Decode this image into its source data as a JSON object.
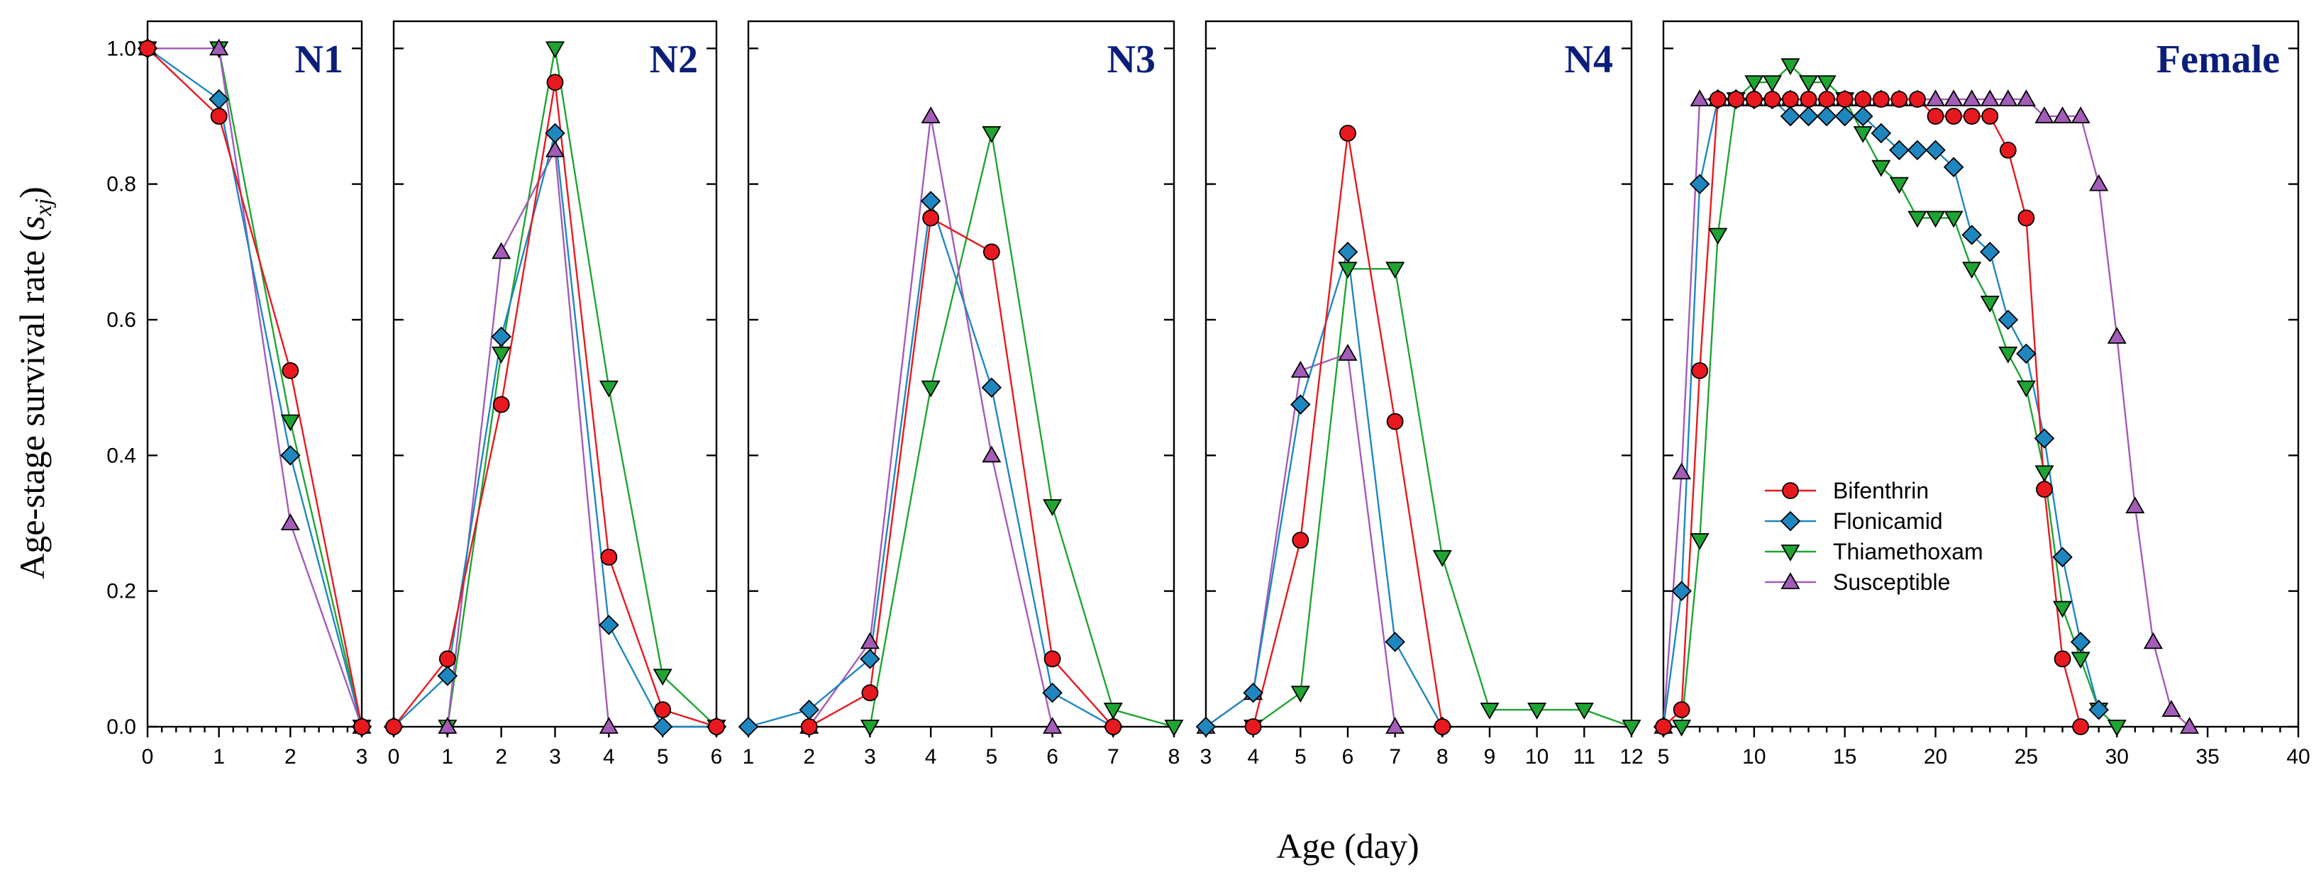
{
  "chart_data": {
    "type": "line",
    "ylabel_main": "Age-stage survival rate (",
    "ylabel_var": "s",
    "ylabel_sub": "xj",
    "ylabel_close": ")",
    "xlabel": "Age (day)",
    "ylim": [
      0,
      1.04
    ],
    "yticks": [
      0.0,
      0.2,
      0.4,
      0.6,
      0.8,
      1.0
    ],
    "legend_position": "middle-right of Female panel",
    "series_styles": [
      {
        "name": "Bifenthrin",
        "color": "#e8191e",
        "marker": "circle"
      },
      {
        "name": "Flonicamid",
        "color": "#1f87c0",
        "marker": "diamond"
      },
      {
        "name": "Thiamethoxam",
        "color": "#1fa532",
        "marker": "triangle-down"
      },
      {
        "name": "Susceptible",
        "color": "#a35cb8",
        "marker": "triangle-up"
      }
    ],
    "panels": [
      {
        "title": "N1",
        "xlim": [
          0,
          3
        ],
        "xticks": [
          0,
          1,
          2,
          3
        ],
        "minor_per_major": 4,
        "series": [
          {
            "name": "Bifenthrin",
            "x": [
              0,
              1,
              2,
              3
            ],
            "y": [
              1.0,
              0.9,
              0.525,
              0.0
            ]
          },
          {
            "name": "Flonicamid",
            "x": [
              0,
              1,
              2,
              3
            ],
            "y": [
              1.0,
              0.925,
              0.4,
              0.0
            ]
          },
          {
            "name": "Thiamethoxam",
            "x": [
              0,
              1,
              2,
              3
            ],
            "y": [
              1.0,
              1.0,
              0.45,
              0.0
            ]
          },
          {
            "name": "Susceptible",
            "x": [
              0,
              1,
              2,
              3
            ],
            "y": [
              1.0,
              1.0,
              0.3,
              0.0
            ]
          }
        ]
      },
      {
        "title": "N2",
        "xlim": [
          0,
          6
        ],
        "xticks": [
          0,
          1,
          2,
          3,
          4,
          5,
          6
        ],
        "minor_per_major": 0,
        "series": [
          {
            "name": "Bifenthrin",
            "x": [
              0,
              1,
              2,
              3,
              4,
              5,
              6
            ],
            "y": [
              0.0,
              0.1,
              0.475,
              0.95,
              0.25,
              0.025,
              0.0
            ]
          },
          {
            "name": "Flonicamid",
            "x": [
              0,
              1,
              2,
              3,
              4,
              5,
              6
            ],
            "y": [
              0.0,
              0.075,
              0.575,
              0.875,
              0.15,
              0.0,
              0.0
            ]
          },
          {
            "name": "Thiamethoxam",
            "x": [
              1,
              2,
              3,
              4,
              5,
              6
            ],
            "y": [
              0.0,
              0.55,
              1.0,
              0.5,
              0.075,
              0.0
            ]
          },
          {
            "name": "Susceptible",
            "x": [
              1,
              2,
              3,
              4
            ],
            "y": [
              0.0,
              0.7,
              0.85,
              0.0
            ]
          }
        ]
      },
      {
        "title": "N3",
        "xlim": [
          1,
          8
        ],
        "xticks": [
          1,
          2,
          3,
          4,
          5,
          6,
          7,
          8
        ],
        "minor_per_major": 0,
        "series": [
          {
            "name": "Bifenthrin",
            "x": [
              2,
              3,
              4,
              5,
              6,
              7
            ],
            "y": [
              0.0,
              0.05,
              0.75,
              0.7,
              0.1,
              0.0
            ]
          },
          {
            "name": "Flonicamid",
            "x": [
              1,
              2,
              3,
              4,
              5,
              6,
              7
            ],
            "y": [
              0.0,
              0.025,
              0.1,
              0.775,
              0.5,
              0.05,
              0.0
            ]
          },
          {
            "name": "Thiamethoxam",
            "x": [
              3,
              4,
              5,
              6,
              7,
              8
            ],
            "y": [
              0.0,
              0.5,
              0.875,
              0.325,
              0.025,
              0.0
            ]
          },
          {
            "name": "Susceptible",
            "x": [
              2,
              3,
              4,
              5,
              6
            ],
            "y": [
              0.0,
              0.125,
              0.9,
              0.4,
              0.0
            ]
          }
        ]
      },
      {
        "title": "N4",
        "xlim": [
          3,
          12
        ],
        "xticks": [
          3,
          4,
          5,
          6,
          7,
          8,
          9,
          10,
          11,
          12
        ],
        "minor_per_major": 0,
        "series": [
          {
            "name": "Bifenthrin",
            "x": [
              4,
              5,
              6,
              7,
              8
            ],
            "y": [
              0.0,
              0.275,
              0.875,
              0.45,
              0.0
            ]
          },
          {
            "name": "Flonicamid",
            "x": [
              3,
              4,
              5,
              6,
              7,
              8
            ],
            "y": [
              0.0,
              0.05,
              0.475,
              0.7,
              0.125,
              0.0
            ]
          },
          {
            "name": "Thiamethoxam",
            "x": [
              4,
              5,
              6,
              7,
              8,
              9,
              10,
              11,
              12
            ],
            "y": [
              0.0,
              0.05,
              0.675,
              0.675,
              0.25,
              0.025,
              0.025,
              0.025,
              0.0
            ]
          },
          {
            "name": "Susceptible",
            "x": [
              3,
              4,
              5,
              6,
              7
            ],
            "y": [
              0.0,
              0.05,
              0.525,
              0.55,
              0.0
            ]
          }
        ]
      },
      {
        "title": "Female",
        "xlim": [
          5,
          40
        ],
        "xticks": [
          5,
          10,
          15,
          20,
          25,
          30,
          35,
          40
        ],
        "minor_per_major": 4,
        "series": [
          {
            "name": "Bifenthrin",
            "x": [
              5,
              6,
              7,
              8,
              9,
              10,
              11,
              12,
              13,
              14,
              15,
              16,
              17,
              18,
              19,
              20,
              21,
              22,
              23,
              24,
              25,
              26,
              27,
              28
            ],
            "y": [
              0.0,
              0.025,
              0.525,
              0.925,
              0.925,
              0.925,
              0.925,
              0.925,
              0.925,
              0.925,
              0.925,
              0.925,
              0.925,
              0.925,
              0.925,
              0.9,
              0.9,
              0.9,
              0.9,
              0.85,
              0.75,
              0.35,
              0.1,
              0.0
            ]
          },
          {
            "name": "Flonicamid",
            "x": [
              5,
              6,
              7,
              8,
              9,
              10,
              11,
              12,
              13,
              14,
              15,
              16,
              17,
              18,
              19,
              20,
              21,
              22,
              23,
              24,
              25,
              26,
              27,
              28,
              29
            ],
            "y": [
              0.0,
              0.2,
              0.8,
              0.925,
              0.925,
              0.925,
              0.925,
              0.9,
              0.9,
              0.9,
              0.9,
              0.9,
              0.875,
              0.85,
              0.85,
              0.85,
              0.825,
              0.725,
              0.7,
              0.6,
              0.55,
              0.425,
              0.25,
              0.125,
              0.025
            ]
          },
          {
            "name": "Thiamethoxam",
            "x": [
              6,
              7,
              8,
              9,
              10,
              11,
              12,
              13,
              14,
              15,
              16,
              17,
              18,
              19,
              20,
              21,
              22,
              23,
              24,
              25,
              26,
              27,
              28,
              29,
              30
            ],
            "y": [
              0.0,
              0.275,
              0.725,
              0.925,
              0.95,
              0.95,
              0.975,
              0.95,
              0.95,
              0.925,
              0.875,
              0.825,
              0.8,
              0.75,
              0.75,
              0.75,
              0.675,
              0.625,
              0.55,
              0.5,
              0.375,
              0.175,
              0.1,
              0.025,
              0.0
            ]
          },
          {
            "name": "Susceptible",
            "x": [
              5,
              6,
              7,
              8,
              9,
              10,
              11,
              12,
              13,
              14,
              15,
              16,
              17,
              18,
              19,
              20,
              21,
              22,
              23,
              24,
              25,
              26,
              27,
              28,
              29,
              30,
              31,
              32,
              33,
              34
            ],
            "y": [
              0.0,
              0.375,
              0.925,
              0.925,
              0.925,
              0.925,
              0.925,
              0.925,
              0.925,
              0.925,
              0.925,
              0.925,
              0.925,
              0.925,
              0.925,
              0.925,
              0.925,
              0.925,
              0.925,
              0.925,
              0.925,
              0.9,
              0.9,
              0.9,
              0.8,
              0.575,
              0.325,
              0.125,
              0.025,
              0.0
            ]
          }
        ]
      }
    ]
  }
}
